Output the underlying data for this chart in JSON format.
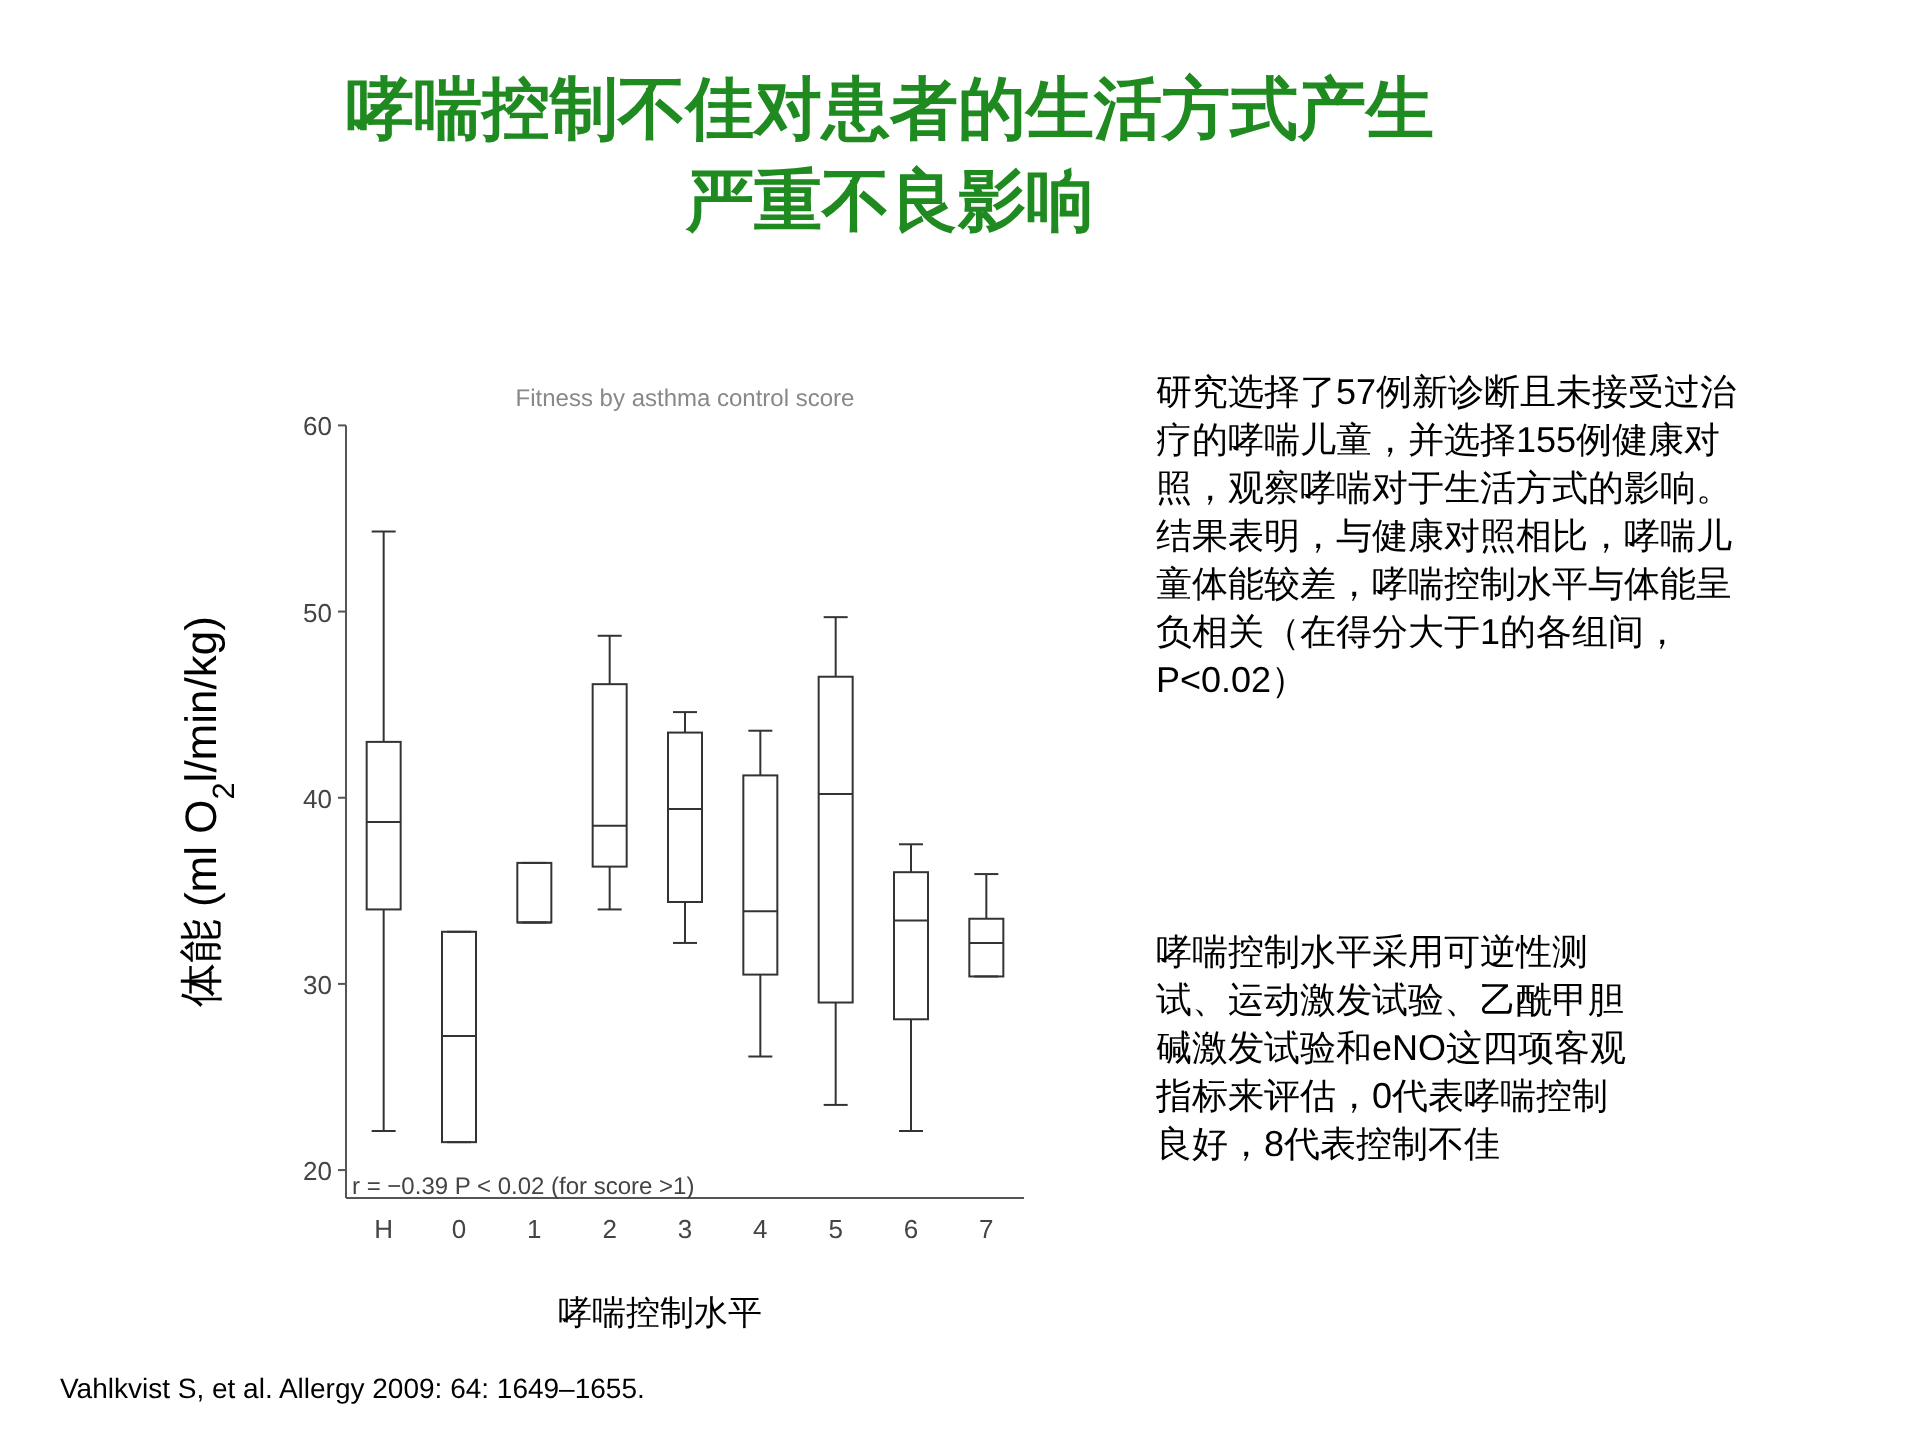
{
  "chart_data": {
    "type": "box",
    "title": "哮喘控制不佳对患者的生活方式产生严重不良影响",
    "subtitle": "Fitness by asthma control score",
    "xlabel": "哮喘控制水平",
    "ylabel": "体能 (ml O$_{2}$l/min/kg)",
    "categories": [
      "H",
      "0",
      "1",
      "2",
      "3",
      "4",
      "5",
      "6",
      "7"
    ],
    "boxes": [
      {
        "low": 22.1,
        "q1": 34.0,
        "median": 38.7,
        "q3": 43.0,
        "high": 54.3
      },
      {
        "low": 21.5,
        "q1": 21.5,
        "median": 27.2,
        "q3": 32.8,
        "high": 32.8
      },
      {
        "low": 33.3,
        "q1": 33.3,
        "median": 33.3,
        "q3": 36.5,
        "high": 36.5
      },
      {
        "low": 34.0,
        "q1": 36.3,
        "median": 38.5,
        "q3": 46.1,
        "high": 48.7
      },
      {
        "low": 32.2,
        "q1": 34.4,
        "median": 39.4,
        "q3": 43.5,
        "high": 44.6
      },
      {
        "low": 26.1,
        "q1": 30.5,
        "median": 33.9,
        "q3": 41.2,
        "high": 43.6
      },
      {
        "low": 23.5,
        "q1": 29.0,
        "median": 40.2,
        "q3": 46.5,
        "high": 49.7
      },
      {
        "low": 22.1,
        "q1": 28.1,
        "median": 33.4,
        "q3": 36.0,
        "high": 37.5
      },
      {
        "low": 30.4,
        "q1": 30.4,
        "median": 32.2,
        "q3": 33.5,
        "high": 35.9
      }
    ],
    "color": "#333333",
    "ylim": [
      18.5,
      60
    ],
    "yticks": [
      20,
      30,
      40,
      50,
      60
    ],
    "grid": false,
    "annotations": [
      "r = −0.39 P < 0.02 (for score >1)",
      "研究选择了57例新诊断且未接受过治疗的哮喘儿童，并选择155例健康对照，观察哮喘对于生活方式的影响。结果表明，与健康对照相比，哮喘儿童体能较差，哮喘控制水平与体能呈负相关（在得分大于1的各组间，P<0.02）",
      "哮喘控制水平采用可逆性测试、运动激发试验、乙酰甲胆碱激发试验和eNO这四项客观指标来评估，0代表哮喘控制良好，8代表控制不佳",
      "Vahlkvist S, et al. Allergy 2009: 64: 1649–1655."
    ]
  }
}
